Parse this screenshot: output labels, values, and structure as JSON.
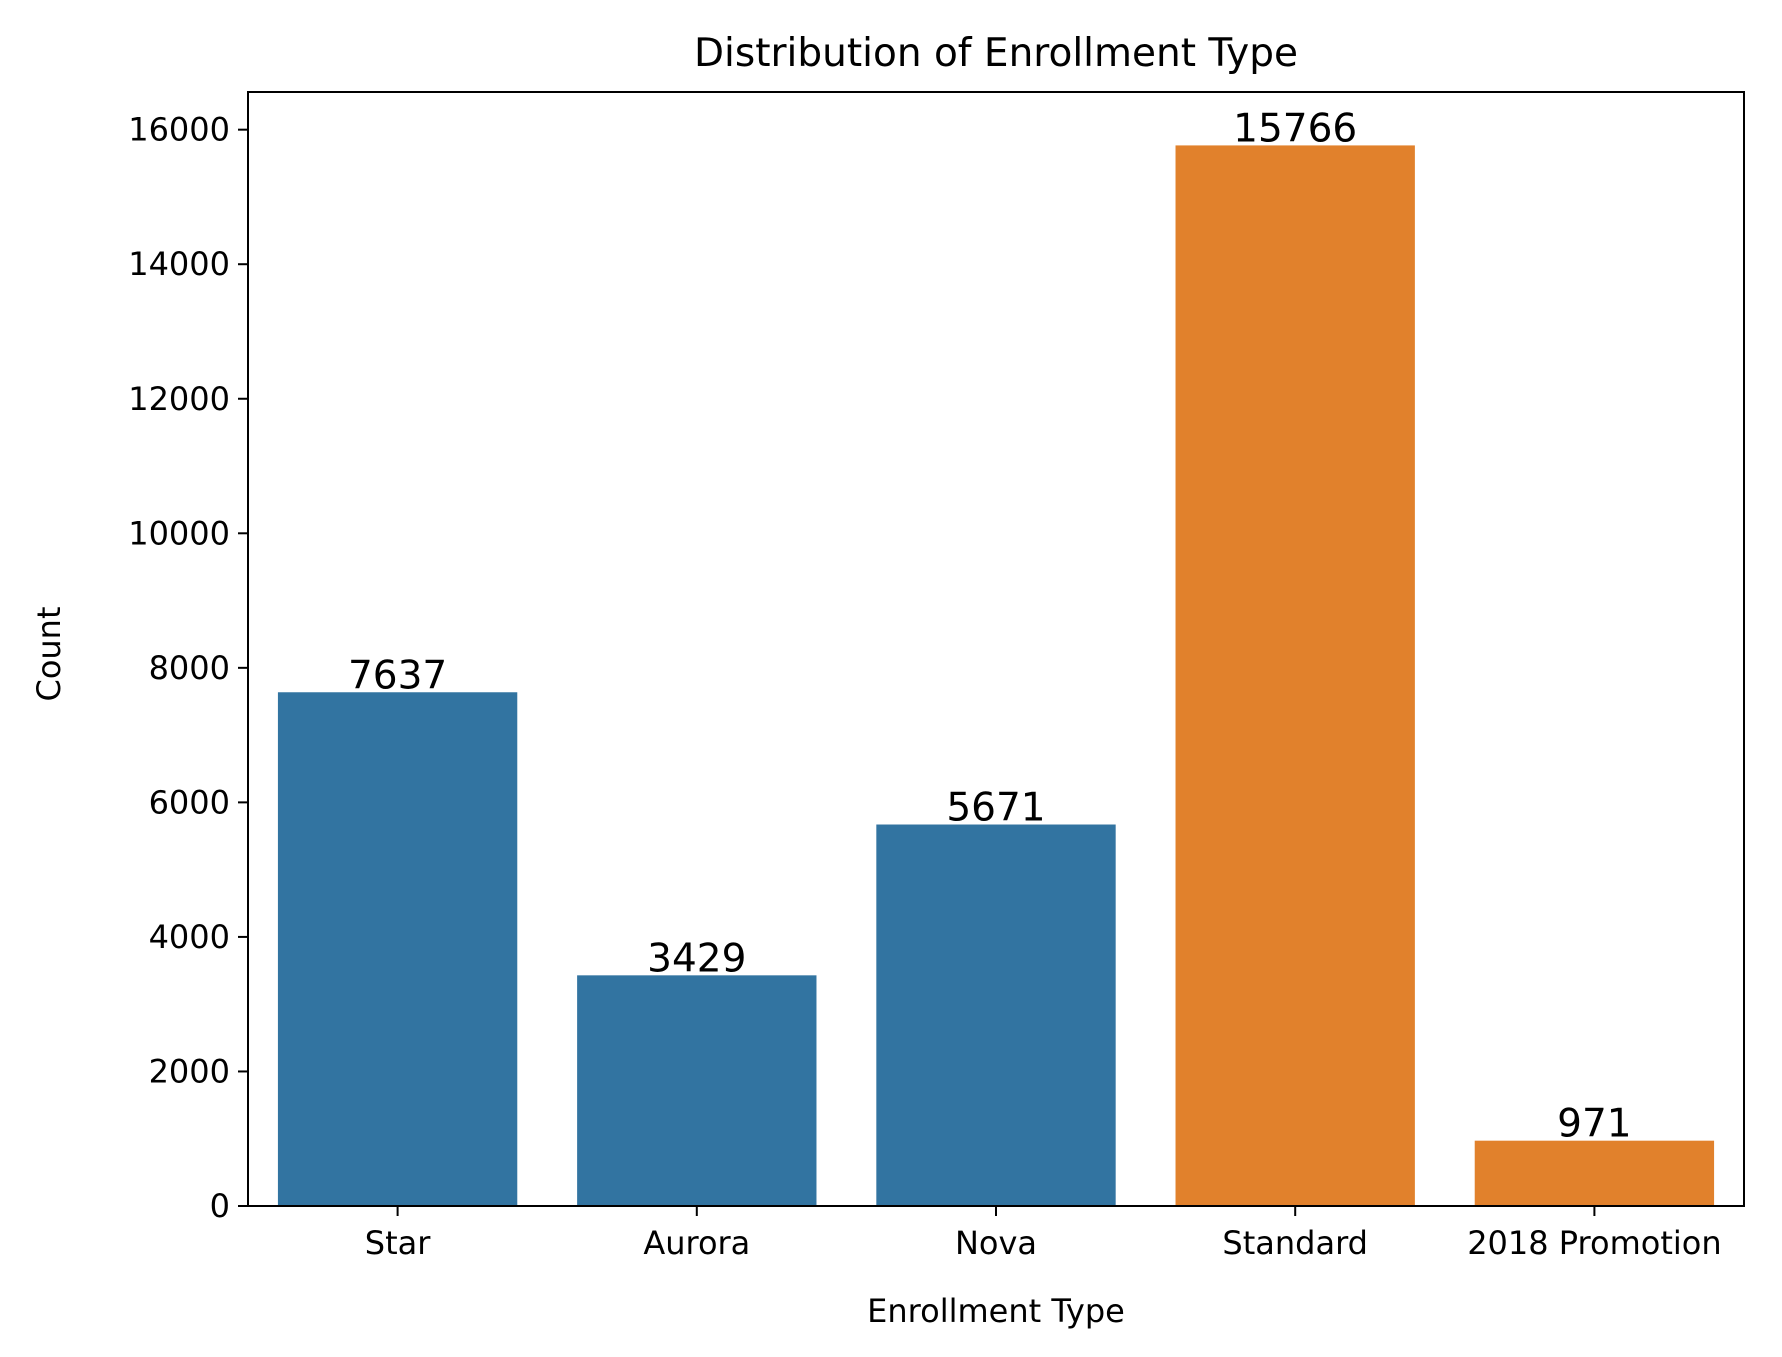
{
  "chart_data": {
    "type": "bar",
    "title": "Distribution of Enrollment Type",
    "xlabel": "Enrollment Type",
    "ylabel": "Count",
    "categories": [
      "Star",
      "Aurora",
      "Nova",
      "Standard",
      "2018 Promotion"
    ],
    "values": [
      7637,
      3429,
      5671,
      15766,
      971
    ],
    "data_labels": [
      "7637",
      "3429",
      "5671",
      "15766",
      "971"
    ],
    "bar_colors": [
      "#3274a1",
      "#3274a1",
      "#3274a1",
      "#e1812c",
      "#e1812c"
    ],
    "ylim": [
      0,
      16560
    ],
    "yticks": [
      0,
      2000,
      4000,
      6000,
      8000,
      10000,
      12000,
      14000,
      16000
    ],
    "grid": false,
    "legend": "none"
  }
}
